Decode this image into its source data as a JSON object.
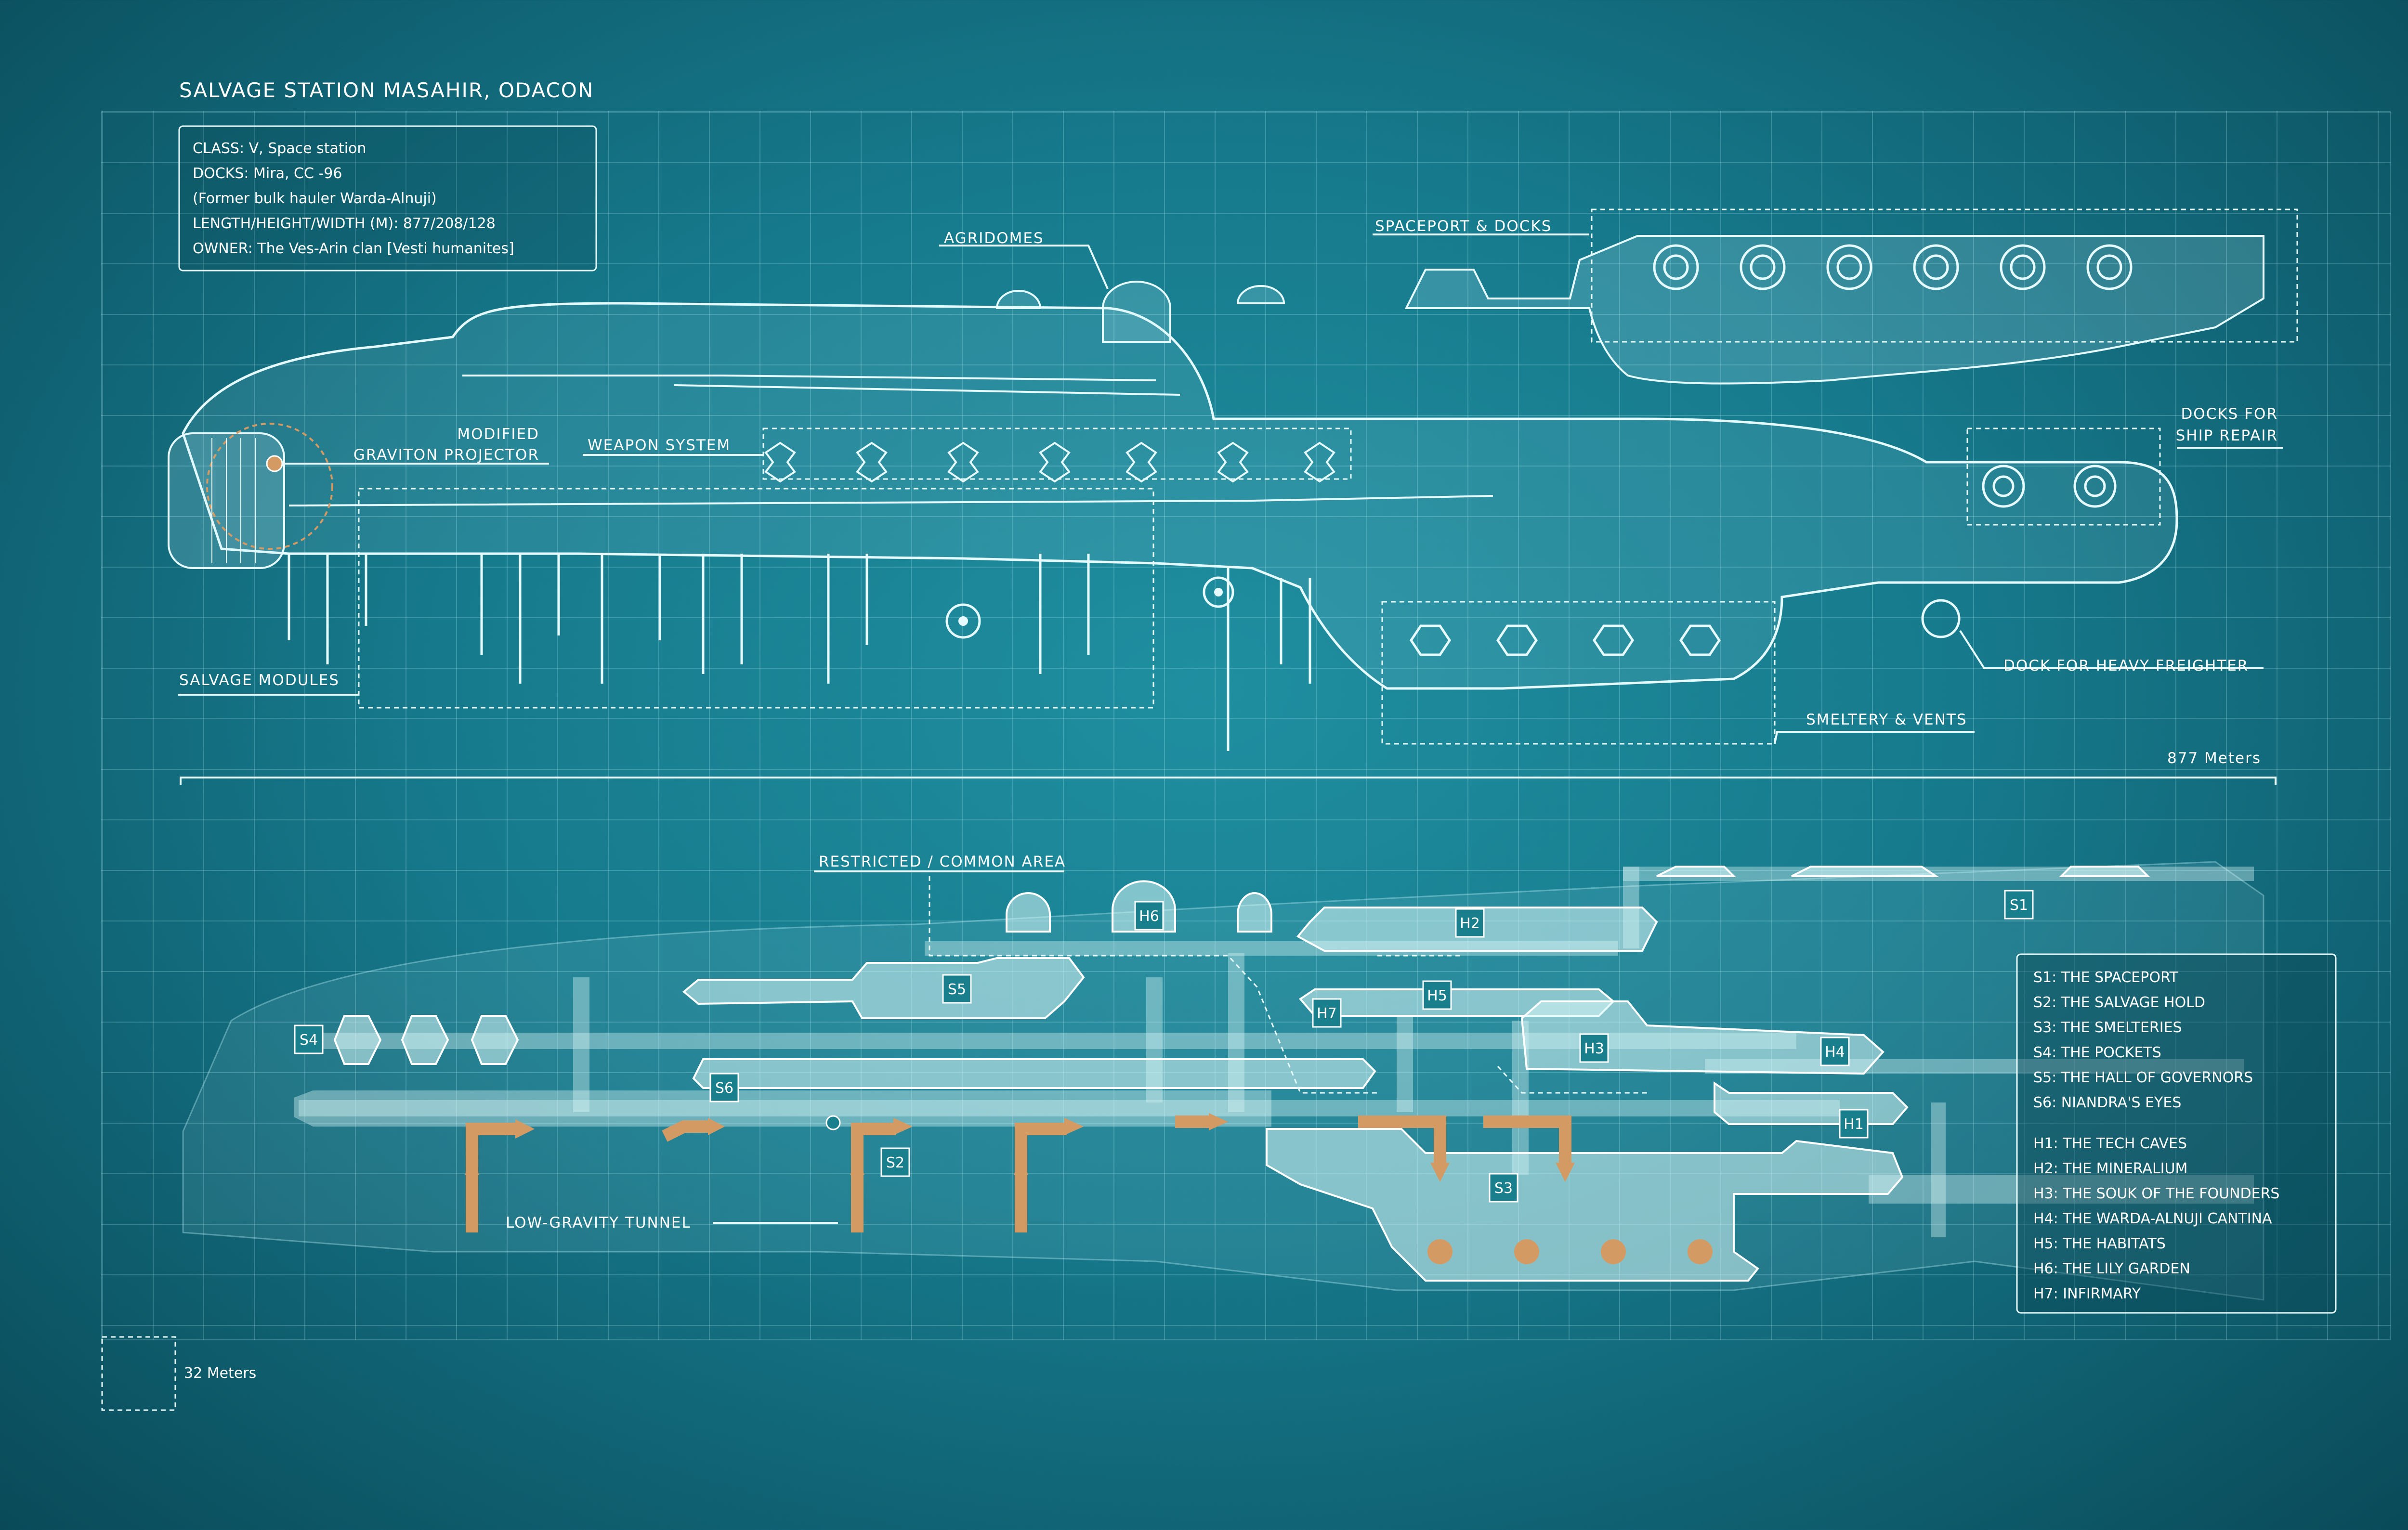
{
  "title": "SALVAGE STATION MASAHIR, ODACON",
  "info": [
    "CLASS: V, Space station",
    "DOCKS: Mira, CC -96",
    "(Former bulk hauler Warda-Alnuji)",
    "LENGTH/HEIGHT/WIDTH (M): 877/208/128",
    "OWNER: The Ves-Arin clan [Vesti humanites]"
  ],
  "callouts": {
    "agridomes": "AGRIDOMES",
    "spaceport": "SPACEPORT & DOCKS",
    "graviton_1": "MODIFIED",
    "graviton_2": "GRAVITON PROJECTOR",
    "weapon": "WEAPON SYSTEM",
    "ship_repair_1": "DOCKS FOR",
    "ship_repair_2": "SHIP REPAIR",
    "heavy_freighter": "DOCK FOR HEAVY FREIGHTER",
    "salvage_modules": "SALVAGE MODULES",
    "smeltery": "SMELTERY & VENTS",
    "restricted": "RESTRICTED / COMMON AREA",
    "tunnel": "LOW-GRAVITY TUNNEL"
  },
  "scale_length": "877 Meters",
  "grid_scale": "32 Meters",
  "badges": {
    "S1": "S1",
    "S2": "S2",
    "S3": "S3",
    "S4": "S4",
    "S5": "S5",
    "S6": "S6",
    "H1": "H1",
    "H2": "H2",
    "H3": "H3",
    "H4": "H4",
    "H5": "H5",
    "H6": "H6",
    "H7": "H7"
  },
  "legend_s": [
    "S1: THE SPACEPORT",
    "S2: THE SALVAGE HOLD",
    "S3: THE SMELTERIES",
    "S4: THE POCKETS",
    "S5: THE HALL OF GOVERNORS",
    "S6: NIANDRA'S EYES"
  ],
  "legend_h": [
    "H1: THE TECH CAVES",
    "H2: THE MINERALIUM",
    "H3: THE SOUK OF THE FOUNDERS",
    "H4: THE WARDA-ALNUJI CANTINA",
    "H5: THE HABITATS",
    "H6: THE LILY GARDEN",
    "H7: INFIRMARY"
  ],
  "colors": {
    "background": "#167a8c",
    "line": "#e6fbff",
    "accent_orange": "#d49a64",
    "room_fill": "#d7f5f5"
  }
}
